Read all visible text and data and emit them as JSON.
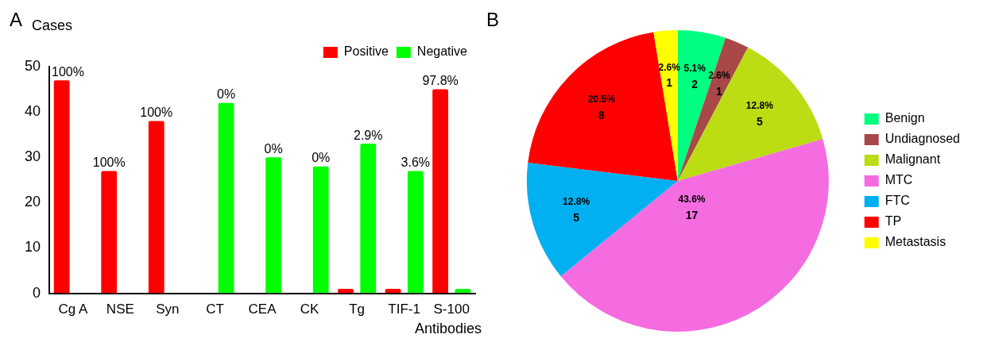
{
  "chart_data": [
    {
      "type": "bar",
      "title": "A",
      "ylabel": "Cases",
      "xlabel": "Antibodies",
      "categories": [
        "Cg A",
        "NSE",
        "Syn",
        "CT",
        "CEA",
        "CK",
        "Tg",
        "TIF-1",
        "S-100"
      ],
      "series": [
        {
          "name": "Positive",
          "color": "#ff0000",
          "values": [
            47,
            27,
            38,
            0,
            0,
            0,
            1,
            1,
            45
          ]
        },
        {
          "name": "Negative",
          "color": "#00ff00",
          "values": [
            0,
            0,
            0,
            42,
            30,
            28,
            33,
            27,
            1
          ]
        }
      ],
      "ylim": [
        0,
        50
      ],
      "yticks": [
        0,
        10,
        20,
        30,
        40,
        50
      ],
      "grid": false,
      "legend": "top right",
      "annotations": [
        "100%",
        "100%",
        "100%",
        "0%",
        "0%",
        "0%",
        "2.9%",
        "3.6%",
        "97.8%"
      ]
    },
    {
      "type": "pie",
      "title": "B",
      "categories": [
        "Benign",
        "Undiagnosed",
        "Malignant",
        "MTC",
        "FTC",
        "TP",
        "Metastasis"
      ],
      "values": [
        2,
        1,
        5,
        17,
        5,
        8,
        1
      ],
      "colors": [
        "#00ff80",
        "#a84848",
        "#bcdc14",
        "#f46ce0",
        "#00b0f0",
        "#ff0000",
        "#ffff00"
      ],
      "annotations": [
        "5.1%",
        "2.6%",
        "12.8%",
        "43.6%",
        "12.8%",
        "20.5%",
        "2.6%"
      ],
      "data_labels": true,
      "legend": "right"
    }
  ]
}
